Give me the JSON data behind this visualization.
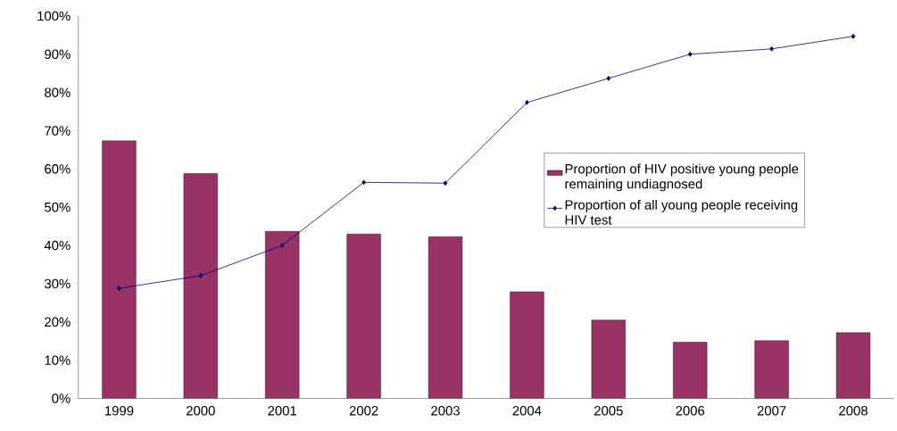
{
  "chart_data": {
    "type": "bar",
    "categories": [
      "1999",
      "2000",
      "2001",
      "2002",
      "2003",
      "2004",
      "2005",
      "2006",
      "2007",
      "2008"
    ],
    "series": [
      {
        "name": "Proportion of HIV positive young people remaining undiagnosed",
        "color": "#993366",
        "values": [
          67.4,
          58.8,
          43.7,
          43.0,
          42.3,
          27.9,
          20.5,
          14.7,
          15.1,
          17.2
        ]
      },
      {
        "name": "Proportion of all young people receiving HIV test",
        "color": "#000080",
        "type": "line",
        "marker": "diamond",
        "values": [
          28.8,
          32.1,
          40.0,
          56.5,
          56.3,
          77.4,
          83.7,
          90.0,
          91.4,
          94.7
        ]
      }
    ],
    "ylim": [
      0,
      100
    ],
    "yticks": [
      {
        "value": 0,
        "label": "0%"
      },
      {
        "value": 10,
        "label": "10%"
      },
      {
        "value": 20,
        "label": "20%"
      },
      {
        "value": 30,
        "label": "30%"
      },
      {
        "value": 40,
        "label": "40%"
      },
      {
        "value": 50,
        "label": "50%"
      },
      {
        "value": 60,
        "label": "60%"
      },
      {
        "value": 70,
        "label": "70%"
      },
      {
        "value": 80,
        "label": "80%"
      },
      {
        "value": 90,
        "label": "90%"
      },
      {
        "value": 100,
        "label": "100%"
      }
    ],
    "legend": "right"
  }
}
